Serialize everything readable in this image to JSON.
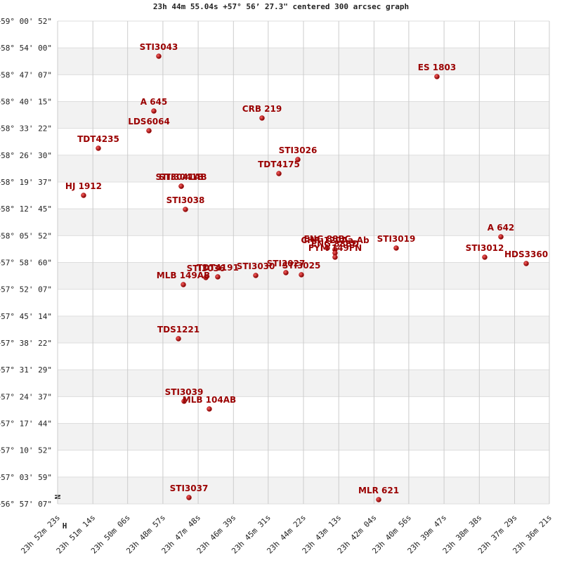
{
  "chart_data": {
    "type": "scatter",
    "title": "23h 44m 55.04s +57° 56’ 27.3\" centered 300 arcsec graph",
    "compass": [
      "N",
      "H"
    ],
    "color": "#b00000",
    "label_color": "#9a0000",
    "grid": true,
    "xlim": [
      85943,
      84981
    ],
    "ylim": [
      56.95194,
      59.01444
    ],
    "xticks": [
      {
        "value": 85943,
        "label": "23h 52m 23s"
      },
      {
        "value": 85874,
        "label": "23h 51m 14s"
      },
      {
        "value": 85806,
        "label": "23h 50m 06s"
      },
      {
        "value": 85737,
        "label": "23h 48m 57s"
      },
      {
        "value": 85668,
        "label": "23h 47m 48s"
      },
      {
        "value": 85599,
        "label": "23h 46m 39s"
      },
      {
        "value": 85531,
        "label": "23h 45m 31s"
      },
      {
        "value": 85462,
        "label": "23h 44m 22s"
      },
      {
        "value": 85393,
        "label": "23h 43m 13s"
      },
      {
        "value": 85324,
        "label": "23h 42m 04s"
      },
      {
        "value": 85256,
        "label": "23h 40m 56s"
      },
      {
        "value": 85187,
        "label": "23h 39m 47s"
      },
      {
        "value": 85118,
        "label": "23h 38m 38s"
      },
      {
        "value": 85049,
        "label": "23h 37m 29s"
      },
      {
        "value": 84981,
        "label": "23h 36m 21s"
      }
    ],
    "yticks": [
      {
        "value": 59.01444,
        "label": "+59° 00' 52\""
      },
      {
        "value": 58.9,
        "label": "+58° 54' 00\""
      },
      {
        "value": 58.78528,
        "label": "+58° 47' 07\""
      },
      {
        "value": 58.67083,
        "label": "+58° 40' 15\""
      },
      {
        "value": 58.55611,
        "label": "+58° 33' 22\""
      },
      {
        "value": 58.44167,
        "label": "+58° 26' 30\""
      },
      {
        "value": 58.32694,
        "label": "+58° 19' 37\""
      },
      {
        "value": 58.2125,
        "label": "+58° 12' 45\""
      },
      {
        "value": 58.09778,
        "label": "+58° 05' 52\""
      },
      {
        "value": 57.98333,
        "label": "+57° 58' 60\""
      },
      {
        "value": 57.86861,
        "label": "+57° 52' 07\""
      },
      {
        "value": 57.75389,
        "label": "+57° 45' 14\""
      },
      {
        "value": 57.63944,
        "label": "+57° 38' 22\""
      },
      {
        "value": 57.52472,
        "label": "+57° 31' 29\""
      },
      {
        "value": 57.41028,
        "label": "+57° 24' 37\""
      },
      {
        "value": 57.29556,
        "label": "+57° 17' 44\""
      },
      {
        "value": 57.18111,
        "label": "+57° 10' 52\""
      },
      {
        "value": 57.06639,
        "label": "+57° 03' 59\""
      },
      {
        "value": 56.95194,
        "label": "+56° 57' 07\""
      }
    ],
    "labels": [
      "STI3043",
      "ES 1803",
      "A   645",
      "LDS6064",
      "CRB 219",
      "TDT4235",
      "STI3026",
      "TDT4175",
      "STI3041AB",
      "STI3041B",
      "HJ 1912",
      "STI3038",
      "A   642",
      "STI3019",
      "STI3012",
      "HDS3360",
      "CHR 120Aa,Ab",
      "ENG 88BC",
      "ENG 88BD",
      "FYM 149FN",
      "STI3030",
      "STI3027",
      "STI3025",
      "STI3036",
      "TDT4191",
      "MLB 149AB",
      "TDS1221",
      "STI3039",
      "MLB 104AB",
      "STI3037",
      "MLR 621"
    ],
    "x": [
      85745.1,
      85200.9,
      85754.7,
      85764.3,
      85543.1,
      85863.3,
      85473.0,
      85510.1,
      85701.1,
      85701.1,
      85892.2,
      85692.9,
      85075.8,
      85280.6,
      85107.4,
      85026.3,
      85400.2,
      85415.3,
      85400.2,
      85400.2,
      85555.4,
      85496.4,
      85466.1,
      85653.0,
      85629.7,
      85697.0,
      85706.6,
      85695.6,
      85646.2,
      85686.0,
      85314.9
    ],
    "y": [
      58.8643,
      58.7773,
      58.6302,
      58.5461,
      58.6002,
      58.4711,
      58.423,
      58.363,
      58.3089,
      58.3089,
      58.2699,
      58.2099,
      58.0928,
      58.0448,
      58.0057,
      57.9787,
      58.0387,
      58.0447,
      58.0237,
      58.0057,
      57.9277,
      57.9397,
      57.9307,
      57.9187,
      57.9217,
      57.8886,
      57.6575,
      57.3903,
      57.3573,
      56.9789,
      56.9699
    ]
  }
}
